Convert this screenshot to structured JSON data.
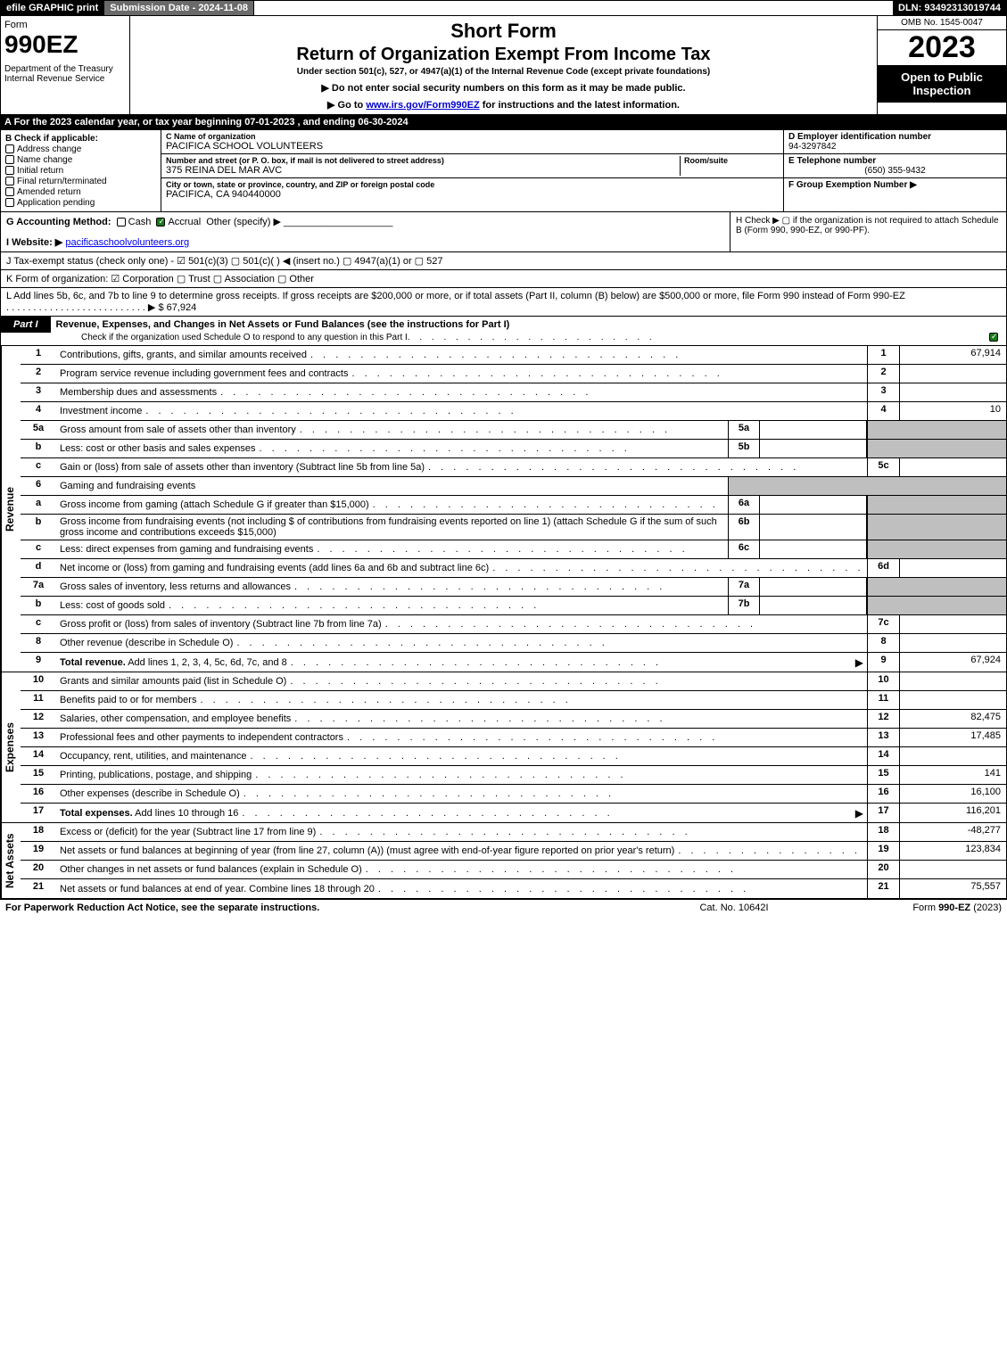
{
  "top": {
    "efile": "efile GRAPHIC print",
    "sub_label": "Submission Date - 2024-11-08",
    "dln": "DLN: 93492313019744"
  },
  "header": {
    "form_word": "Form",
    "form_num": "990EZ",
    "dept": "Department of the Treasury\nInternal Revenue Service",
    "short": "Short Form",
    "title": "Return of Organization Exempt From Income Tax",
    "sub": "Under section 501(c), 527, or 4947(a)(1) of the Internal Revenue Code (except private foundations)",
    "note1": "▶ Do not enter social security numbers on this form as it may be made public.",
    "note2_pre": "▶ Go to ",
    "note2_link": "www.irs.gov/Form990EZ",
    "note2_post": " for instructions and the latest information.",
    "omb": "OMB No. 1545-0047",
    "year": "2023",
    "inspect": "Open to Public Inspection"
  },
  "A": "A  For the 2023 calendar year, or tax year beginning 07-01-2023 , and ending 06-30-2024",
  "B": {
    "hdr": "B  Check if applicable:",
    "items": [
      "Address change",
      "Name change",
      "Initial return",
      "Final return/terminated",
      "Amended return",
      "Application pending"
    ]
  },
  "C": {
    "name_lbl": "C Name of organization",
    "name": "PACIFICA SCHOOL VOLUNTEERS",
    "street_lbl": "Number and street (or P. O. box, if mail is not delivered to street address)",
    "street": "375 REINA DEL MAR AVC",
    "room_lbl": "Room/suite",
    "city_lbl": "City or town, state or province, country, and ZIP or foreign postal code",
    "city": "PACIFICA, CA  940440000"
  },
  "DEF": {
    "d_lbl": "D Employer identification number",
    "d": "94-3297842",
    "e_lbl": "E Telephone number",
    "e": "(650) 355-9432",
    "f_lbl": "F Group Exemption Number  ▶"
  },
  "G": {
    "lbl": "G Accounting Method:",
    "cash": "Cash",
    "accrual": "Accrual",
    "other": "Other (specify) ▶"
  },
  "H": "H   Check ▶  ▢  if the organization is not required to attach Schedule B (Form 990, 990-EZ, or 990-PF).",
  "I": {
    "lbl": "I Website: ▶",
    "val": "pacificaschoolvolunteers.org"
  },
  "J": "J Tax-exempt status (check only one) -  ☑ 501(c)(3)  ▢ 501(c)(  ) ◀ (insert no.)  ▢ 4947(a)(1) or  ▢ 527",
  "K": "K Form of organization:   ☑ Corporation   ▢ Trust   ▢ Association   ▢ Other",
  "L": {
    "text": "L Add lines 5b, 6c, and 7b to line 9 to determine gross receipts. If gross receipts are $200,000 or more, or if total assets (Part II, column (B) below) are $500,000 or more, file Form 990 instead of Form 990-EZ",
    "val": "▶ $ 67,924"
  },
  "part1": {
    "tag": "Part I",
    "desc": "Revenue, Expenses, and Changes in Net Assets or Fund Balances (see the instructions for Part I)",
    "chk": "Check if the organization used Schedule O to respond to any question in this Part I"
  },
  "vlabels": {
    "rev": "Revenue",
    "exp": "Expenses",
    "net": "Net Assets"
  },
  "rows": {
    "1": {
      "n": "1",
      "d": "Contributions, gifts, grants, and similar amounts received",
      "r": "1",
      "v": "67,914"
    },
    "2": {
      "n": "2",
      "d": "Program service revenue including government fees and contracts",
      "r": "2",
      "v": ""
    },
    "3": {
      "n": "3",
      "d": "Membership dues and assessments",
      "r": "3",
      "v": ""
    },
    "4": {
      "n": "4",
      "d": "Investment income",
      "r": "4",
      "v": "10"
    },
    "5a": {
      "n": "5a",
      "d": "Gross amount from sale of assets other than inventory",
      "sl": "5a"
    },
    "5b": {
      "n": "b",
      "d": "Less: cost or other basis and sales expenses",
      "sl": "5b"
    },
    "5c": {
      "n": "c",
      "d": "Gain or (loss) from sale of assets other than inventory (Subtract line 5b from line 5a)",
      "r": "5c",
      "v": ""
    },
    "6": {
      "n": "6",
      "d": "Gaming and fundraising events"
    },
    "6a": {
      "n": "a",
      "d": "Gross income from gaming (attach Schedule G if greater than $15,000)",
      "sl": "6a"
    },
    "6b": {
      "n": "b",
      "d": "Gross income from fundraising events (not including $                    of contributions from fundraising events reported on line 1) (attach Schedule G if the sum of such gross income and contributions exceeds $15,000)",
      "sl": "6b"
    },
    "6c": {
      "n": "c",
      "d": "Less: direct expenses from gaming and fundraising events",
      "sl": "6c"
    },
    "6d": {
      "n": "d",
      "d": "Net income or (loss) from gaming and fundraising events (add lines 6a and 6b and subtract line 6c)",
      "r": "6d",
      "v": ""
    },
    "7a": {
      "n": "7a",
      "d": "Gross sales of inventory, less returns and allowances",
      "sl": "7a"
    },
    "7b": {
      "n": "b",
      "d": "Less: cost of goods sold",
      "sl": "7b"
    },
    "7c": {
      "n": "c",
      "d": "Gross profit or (loss) from sales of inventory (Subtract line 7b from line 7a)",
      "r": "7c",
      "v": ""
    },
    "8": {
      "n": "8",
      "d": "Other revenue (describe in Schedule O)",
      "r": "8",
      "v": ""
    },
    "9": {
      "n": "9",
      "d": "Total revenue. Add lines 1, 2, 3, 4, 5c, 6d, 7c, and 8",
      "r": "9",
      "v": "67,924",
      "bold": true,
      "arrow": true
    },
    "10": {
      "n": "10",
      "d": "Grants and similar amounts paid (list in Schedule O)",
      "r": "10",
      "v": ""
    },
    "11": {
      "n": "11",
      "d": "Benefits paid to or for members",
      "r": "11",
      "v": ""
    },
    "12": {
      "n": "12",
      "d": "Salaries, other compensation, and employee benefits",
      "r": "12",
      "v": "82,475"
    },
    "13": {
      "n": "13",
      "d": "Professional fees and other payments to independent contractors",
      "r": "13",
      "v": "17,485"
    },
    "14": {
      "n": "14",
      "d": "Occupancy, rent, utilities, and maintenance",
      "r": "14",
      "v": ""
    },
    "15": {
      "n": "15",
      "d": "Printing, publications, postage, and shipping",
      "r": "15",
      "v": "141"
    },
    "16": {
      "n": "16",
      "d": "Other expenses (describe in Schedule O)",
      "r": "16",
      "v": "16,100"
    },
    "17": {
      "n": "17",
      "d": "Total expenses. Add lines 10 through 16",
      "r": "17",
      "v": "116,201",
      "bold": true,
      "arrow": true
    },
    "18": {
      "n": "18",
      "d": "Excess or (deficit) for the year (Subtract line 17 from line 9)",
      "r": "18",
      "v": "-48,277"
    },
    "19": {
      "n": "19",
      "d": "Net assets or fund balances at beginning of year (from line 27, column (A)) (must agree with end-of-year figure reported on prior year's return)",
      "r": "19",
      "v": "123,834"
    },
    "20": {
      "n": "20",
      "d": "Other changes in net assets or fund balances (explain in Schedule O)",
      "r": "20",
      "v": ""
    },
    "21": {
      "n": "21",
      "d": "Net assets or fund balances at end of year. Combine lines 18 through 20",
      "r": "21",
      "v": "75,557"
    }
  },
  "footer": {
    "l": "For Paperwork Reduction Act Notice, see the separate instructions.",
    "c": "Cat. No. 10642I",
    "r": "Form 990-EZ (2023)"
  }
}
